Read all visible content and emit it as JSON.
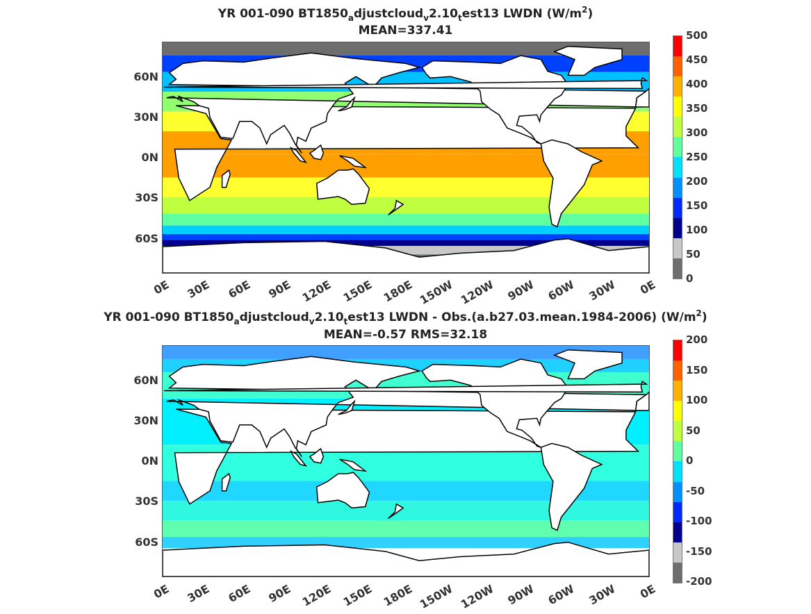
{
  "panels": [
    {
      "title_parts": [
        "YR 001-090 BT1850",
        "a",
        "djustcloud",
        "v",
        "2.10",
        "t",
        "est13 LWDN (W/m",
        "2",
        ")"
      ],
      "subtitle": "MEAN=337.41",
      "colorbar_ticks": [
        "500",
        "450",
        "400",
        "350",
        "300",
        "250",
        "200",
        "150",
        "100",
        "50",
        "0"
      ]
    },
    {
      "title_parts": [
        "YR 001-090 BT1850",
        "a",
        "djustcloud",
        "v",
        "2.10",
        "t",
        "est13 LWDN - Obs.(a.b27.03.mean.1984-2006) (W/m",
        "2",
        ")"
      ],
      "subtitle": "MEAN=-0.57 RMS=32.18",
      "colorbar_ticks": [
        "200",
        "150",
        "100",
        "50",
        "0",
        "-50",
        "-100",
        "-150",
        "-200"
      ]
    }
  ],
  "axes": {
    "y_ticks": [
      "60N",
      "30N",
      "0N",
      "30S",
      "60S"
    ],
    "x_ticks": [
      "0E",
      "30E",
      "60E",
      "90E",
      "120E",
      "150E",
      "180E",
      "150W",
      "120W",
      "90W",
      "60W",
      "30W",
      "0E"
    ]
  },
  "chart_data": [
    {
      "type": "heatmap",
      "title": "YR 001-090 BT1850_adjustcloud_v2.10_test13 LWDN (W/m2)",
      "subtitle": "MEAN=337.41",
      "x_ticks": [
        "0E",
        "30E",
        "60E",
        "90E",
        "120E",
        "150E",
        "180E",
        "150W",
        "120W",
        "90W",
        "60W",
        "30W",
        "0E"
      ],
      "y_ticks": [
        "60N",
        "30N",
        "0N",
        "30S",
        "60S"
      ],
      "colorbar": {
        "min": 0,
        "max": 500,
        "ticks": [
          0,
          50,
          100,
          150,
          200,
          250,
          300,
          350,
          400,
          450,
          500
        ],
        "colors": [
          "#6e6e6e",
          "#c8c8c8",
          "#00008f",
          "#0028ff",
          "#0090ff",
          "#00e0ff",
          "#60ffa0",
          "#c0ff40",
          "#ffff00",
          "#ffb000",
          "#ff6000",
          "#ff0000"
        ]
      },
      "zonal_bands": [
        {
          "lat": 80,
          "color": "#6e6e6e"
        },
        {
          "lat": 70,
          "color": "#0040ff"
        },
        {
          "lat": 55,
          "color": "#00c0ff"
        },
        {
          "lat": 40,
          "color": "#90ff70"
        },
        {
          "lat": 25,
          "color": "#ffff30"
        },
        {
          "lat": 10,
          "color": "#ffa000"
        },
        {
          "lat": -10,
          "color": "#ffa000"
        },
        {
          "lat": -25,
          "color": "#ffff30"
        },
        {
          "lat": -40,
          "color": "#c0ff40"
        },
        {
          "lat": -50,
          "color": "#60ffa0"
        },
        {
          "lat": -58,
          "color": "#00d0ff"
        },
        {
          "lat": -63,
          "color": "#0040ff"
        },
        {
          "lat": -67,
          "color": "#00008f"
        },
        {
          "lat": -72,
          "color": "#c8c8c8"
        },
        {
          "lat": -80,
          "color": "#6e6e6e"
        }
      ]
    },
    {
      "type": "heatmap",
      "title": "YR 001-090 BT1850_adjustcloud_v2.10_test13 LWDN - Obs.(a.b27.03.mean.1984-2006) (W/m2)",
      "subtitle": "MEAN=-0.57 RMS=32.18",
      "x_ticks": [
        "0E",
        "30E",
        "60E",
        "90E",
        "120E",
        "150E",
        "180E",
        "150W",
        "120W",
        "90W",
        "60W",
        "30W",
        "0E"
      ],
      "y_ticks": [
        "60N",
        "30N",
        "0N",
        "30S",
        "60S"
      ],
      "colorbar": {
        "min": -200,
        "max": 200,
        "ticks": [
          -200,
          -150,
          -100,
          -50,
          0,
          50,
          100,
          150,
          200
        ],
        "colors": [
          "#6e6e6e",
          "#c8c8c8",
          "#00008f",
          "#0028ff",
          "#0090ff",
          "#00e0ff",
          "#60ffa0",
          "#c0ff40",
          "#ffff00",
          "#ffb000",
          "#ff6000",
          "#ff0000"
        ]
      },
      "zonal_bands": [
        {
          "lat": 80,
          "color": "#40a0ff"
        },
        {
          "lat": 70,
          "color": "#20d0ff"
        },
        {
          "lat": 60,
          "color": "#40ffd0"
        },
        {
          "lat": 30,
          "color": "#00f0ff"
        },
        {
          "lat": -10,
          "color": "#30ffe0"
        },
        {
          "lat": -25,
          "color": "#20d8ff"
        },
        {
          "lat": -40,
          "color": "#30f8e0"
        },
        {
          "lat": -55,
          "color": "#60ffb0"
        },
        {
          "lat": -65,
          "color": "#30d0ff"
        },
        {
          "lat": -72,
          "color": "#ffffff"
        }
      ]
    }
  ]
}
